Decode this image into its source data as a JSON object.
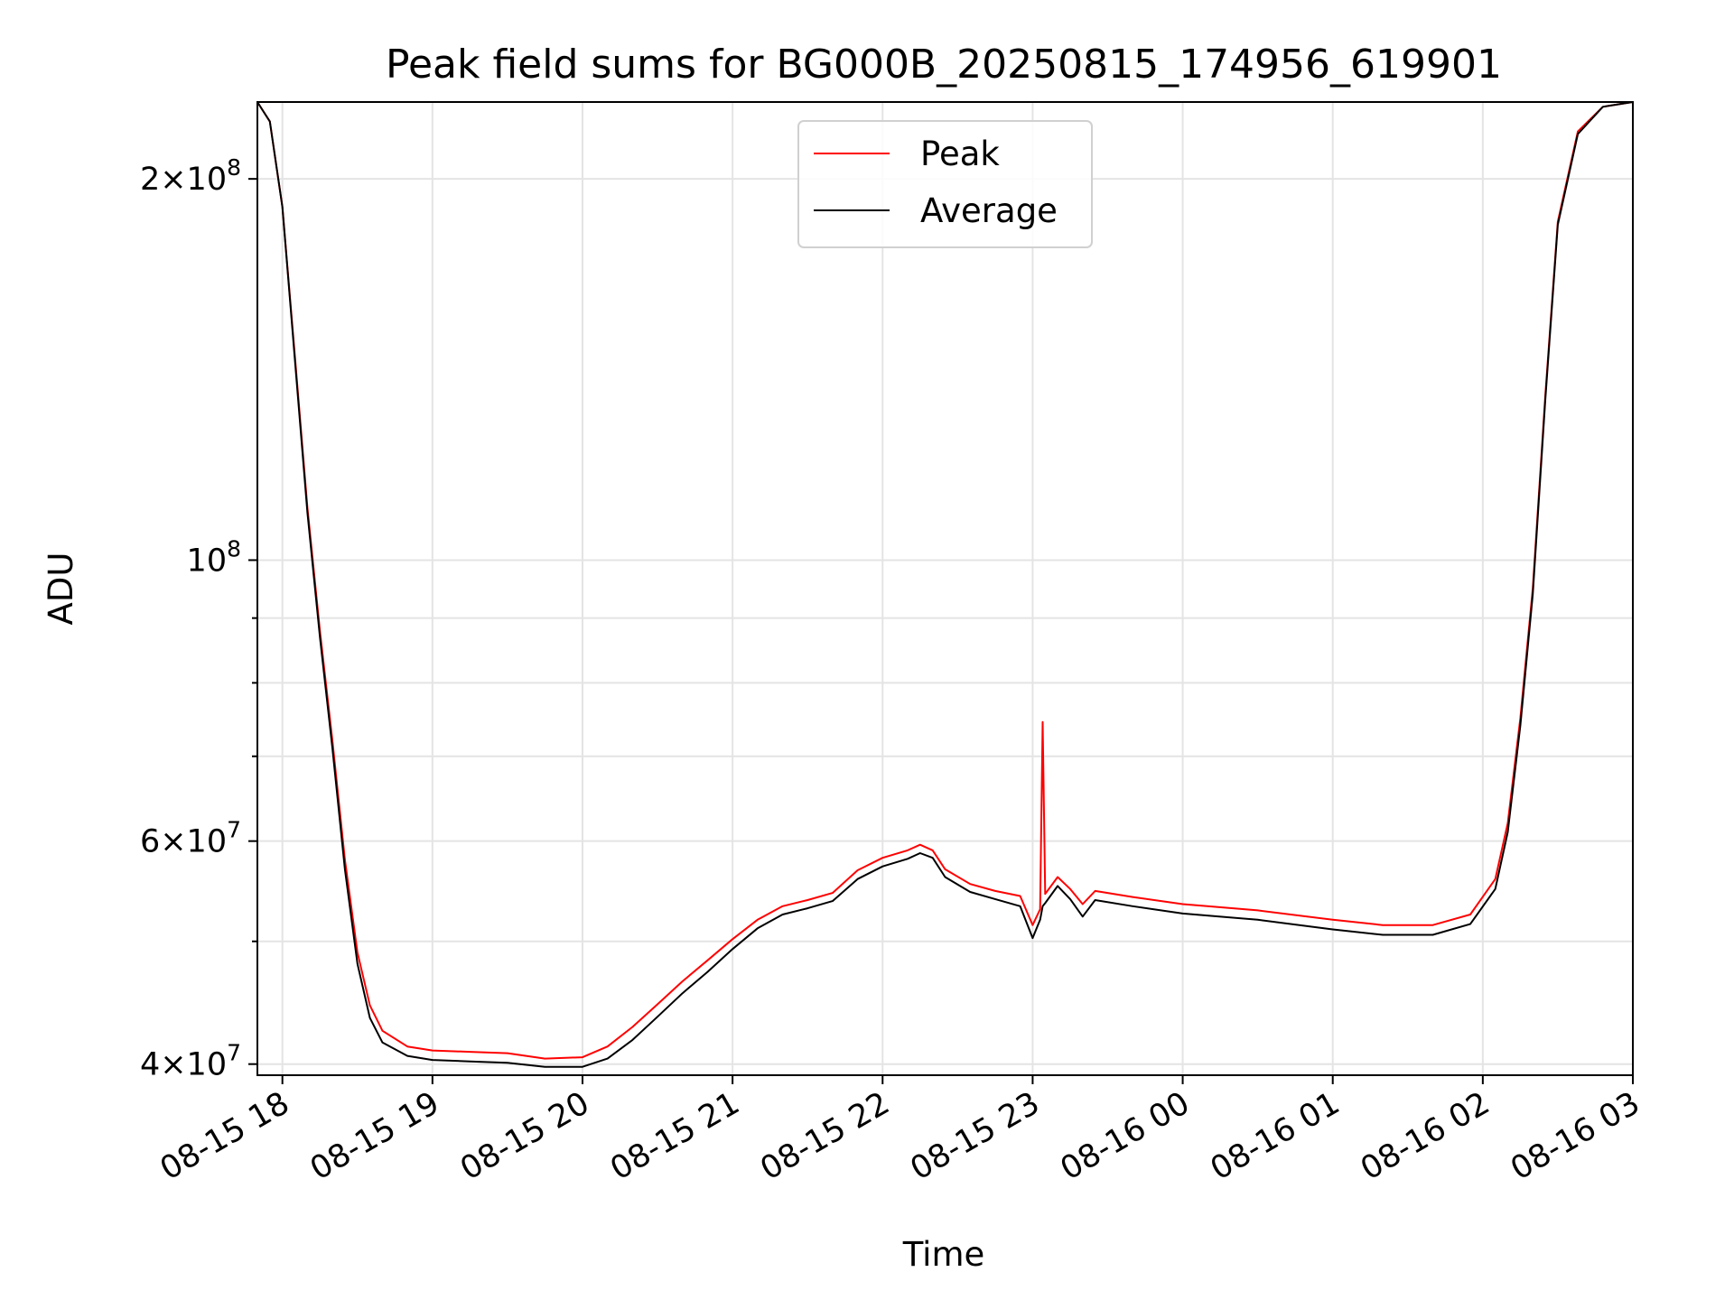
{
  "chart_data": {
    "type": "line",
    "title": "Peak field sums for BG000B_20250815_174956_619901",
    "xlabel": "Time",
    "ylabel": "ADU",
    "yscale": "log",
    "grid": true,
    "legend_position": "upper-center",
    "xlim": [
      "2025-08-15T17:50",
      "2025-08-16T03:00"
    ],
    "ylim": [
      39200000,
      230000000
    ],
    "x_ticks": [
      {
        "t": "2025-08-15T18:00",
        "label": "08-15 18"
      },
      {
        "t": "2025-08-15T19:00",
        "label": "08-15 19"
      },
      {
        "t": "2025-08-15T20:00",
        "label": "08-15 20"
      },
      {
        "t": "2025-08-15T21:00",
        "label": "08-15 21"
      },
      {
        "t": "2025-08-15T22:00",
        "label": "08-15 22"
      },
      {
        "t": "2025-08-15T23:00",
        "label": "08-15 23"
      },
      {
        "t": "2025-08-16T00:00",
        "label": "08-16 00"
      },
      {
        "t": "2025-08-16T01:00",
        "label": "08-16 01"
      },
      {
        "t": "2025-08-16T02:00",
        "label": "08-16 02"
      },
      {
        "t": "2025-08-16T03:00",
        "label": "08-16 03"
      }
    ],
    "y_ticks_major": [
      {
        "value": 40000000,
        "mantissa": "4",
        "exponent": "7"
      },
      {
        "value": 60000000,
        "mantissa": "6",
        "exponent": "7"
      },
      {
        "value": 100000000,
        "mantissa": "",
        "exponent": "8"
      },
      {
        "value": 200000000,
        "mantissa": "2",
        "exponent": "8"
      }
    ],
    "y_ticks_minor": [
      50000000,
      70000000,
      80000000,
      90000000
    ],
    "series": [
      {
        "name": "Peak",
        "color": "#ff0000",
        "points": [
          [
            "2025-08-15T17:50",
            230000000
          ],
          [
            "2025-08-15T17:55",
            222000000
          ],
          [
            "2025-08-15T18:00",
            190000000
          ],
          [
            "2025-08-15T18:05",
            145000000
          ],
          [
            "2025-08-15T18:10",
            110000000
          ],
          [
            "2025-08-15T18:15",
            88000000
          ],
          [
            "2025-08-15T18:20",
            72000000
          ],
          [
            "2025-08-15T18:25",
            58000000
          ],
          [
            "2025-08-15T18:30",
            49000000
          ],
          [
            "2025-08-15T18:35",
            44500000
          ],
          [
            "2025-08-15T18:40",
            42500000
          ],
          [
            "2025-08-15T18:50",
            41300000
          ],
          [
            "2025-08-15T19:00",
            41000000
          ],
          [
            "2025-08-15T19:15",
            40900000
          ],
          [
            "2025-08-15T19:30",
            40800000
          ],
          [
            "2025-08-15T19:45",
            40400000
          ],
          [
            "2025-08-15T20:00",
            40500000
          ],
          [
            "2025-08-15T20:10",
            41300000
          ],
          [
            "2025-08-15T20:20",
            42800000
          ],
          [
            "2025-08-15T20:30",
            44600000
          ],
          [
            "2025-08-15T20:40",
            46500000
          ],
          [
            "2025-08-15T20:50",
            48300000
          ],
          [
            "2025-08-15T21:00",
            50200000
          ],
          [
            "2025-08-15T21:10",
            52000000
          ],
          [
            "2025-08-15T21:20",
            53300000
          ],
          [
            "2025-08-15T21:30",
            53900000
          ],
          [
            "2025-08-15T21:40",
            54600000
          ],
          [
            "2025-08-15T21:50",
            56900000
          ],
          [
            "2025-08-15T22:00",
            58200000
          ],
          [
            "2025-08-15T22:10",
            59000000
          ],
          [
            "2025-08-15T22:15",
            59600000
          ],
          [
            "2025-08-15T22:20",
            59000000
          ],
          [
            "2025-08-15T22:25",
            57000000
          ],
          [
            "2025-08-15T22:35",
            55500000
          ],
          [
            "2025-08-15T22:45",
            54800000
          ],
          [
            "2025-08-15T22:55",
            54300000
          ],
          [
            "2025-08-15T23:00",
            51500000
          ],
          [
            "2025-08-15T23:03",
            53000000
          ],
          [
            "2025-08-15T23:04",
            74500000
          ],
          [
            "2025-08-15T23:05",
            54500000
          ],
          [
            "2025-08-15T23:10",
            56200000
          ],
          [
            "2025-08-15T23:15",
            55000000
          ],
          [
            "2025-08-15T23:20",
            53500000
          ],
          [
            "2025-08-15T23:25",
            54800000
          ],
          [
            "2025-08-15T23:40",
            54200000
          ],
          [
            "2025-08-16T00:00",
            53500000
          ],
          [
            "2025-08-16T00:30",
            52900000
          ],
          [
            "2025-08-16T01:00",
            52000000
          ],
          [
            "2025-08-16T01:20",
            51500000
          ],
          [
            "2025-08-16T01:40",
            51500000
          ],
          [
            "2025-08-16T01:55",
            52500000
          ],
          [
            "2025-08-16T02:05",
            56000000
          ],
          [
            "2025-08-16T02:10",
            62000000
          ],
          [
            "2025-08-16T02:15",
            75000000
          ],
          [
            "2025-08-16T02:20",
            95000000
          ],
          [
            "2025-08-16T02:25",
            135000000
          ],
          [
            "2025-08-16T02:30",
            185000000
          ],
          [
            "2025-08-16T02:38",
            218000000
          ],
          [
            "2025-08-16T02:48",
            228000000
          ],
          [
            "2025-08-16T03:00",
            230000000
          ]
        ]
      },
      {
        "name": "Average",
        "color": "#000000",
        "points": [
          [
            "2025-08-15T17:50",
            230000000
          ],
          [
            "2025-08-15T17:55",
            222000000
          ],
          [
            "2025-08-15T18:00",
            190000000
          ],
          [
            "2025-08-15T18:05",
            144000000
          ],
          [
            "2025-08-15T18:10",
            109000000
          ],
          [
            "2025-08-15T18:15",
            87000000
          ],
          [
            "2025-08-15T18:20",
            71000000
          ],
          [
            "2025-08-15T18:25",
            57000000
          ],
          [
            "2025-08-15T18:30",
            48000000
          ],
          [
            "2025-08-15T18:35",
            43500000
          ],
          [
            "2025-08-15T18:40",
            41600000
          ],
          [
            "2025-08-15T18:50",
            40600000
          ],
          [
            "2025-08-15T19:00",
            40300000
          ],
          [
            "2025-08-15T19:15",
            40200000
          ],
          [
            "2025-08-15T19:30",
            40100000
          ],
          [
            "2025-08-15T19:45",
            39800000
          ],
          [
            "2025-08-15T20:00",
            39800000
          ],
          [
            "2025-08-15T20:10",
            40400000
          ],
          [
            "2025-08-15T20:20",
            41800000
          ],
          [
            "2025-08-15T20:30",
            43600000
          ],
          [
            "2025-08-15T20:40",
            45500000
          ],
          [
            "2025-08-15T20:50",
            47300000
          ],
          [
            "2025-08-15T21:00",
            49300000
          ],
          [
            "2025-08-15T21:10",
            51200000
          ],
          [
            "2025-08-15T21:20",
            52500000
          ],
          [
            "2025-08-15T21:30",
            53100000
          ],
          [
            "2025-08-15T21:40",
            53800000
          ],
          [
            "2025-08-15T21:50",
            56000000
          ],
          [
            "2025-08-15T22:00",
            57300000
          ],
          [
            "2025-08-15T22:10",
            58100000
          ],
          [
            "2025-08-15T22:15",
            58700000
          ],
          [
            "2025-08-15T22:20",
            58200000
          ],
          [
            "2025-08-15T22:25",
            56200000
          ],
          [
            "2025-08-15T22:35",
            54700000
          ],
          [
            "2025-08-15T22:45",
            54000000
          ],
          [
            "2025-08-15T22:55",
            53300000
          ],
          [
            "2025-08-15T23:00",
            50300000
          ],
          [
            "2025-08-15T23:03",
            52000000
          ],
          [
            "2025-08-15T23:04",
            53300000
          ],
          [
            "2025-08-15T23:05",
            53600000
          ],
          [
            "2025-08-15T23:10",
            55300000
          ],
          [
            "2025-08-15T23:15",
            54000000
          ],
          [
            "2025-08-15T23:20",
            52300000
          ],
          [
            "2025-08-15T23:25",
            53900000
          ],
          [
            "2025-08-15T23:40",
            53300000
          ],
          [
            "2025-08-16T00:00",
            52600000
          ],
          [
            "2025-08-16T00:30",
            52000000
          ],
          [
            "2025-08-16T01:00",
            51100000
          ],
          [
            "2025-08-16T01:20",
            50600000
          ],
          [
            "2025-08-16T01:40",
            50600000
          ],
          [
            "2025-08-16T01:55",
            51600000
          ],
          [
            "2025-08-16T02:05",
            55000000
          ],
          [
            "2025-08-16T02:10",
            61000000
          ],
          [
            "2025-08-16T02:15",
            74000000
          ],
          [
            "2025-08-16T02:20",
            94000000
          ],
          [
            "2025-08-16T02:25",
            134000000
          ],
          [
            "2025-08-16T02:30",
            184000000
          ],
          [
            "2025-08-16T02:38",
            217000000
          ],
          [
            "2025-08-16T02:48",
            228000000
          ],
          [
            "2025-08-16T03:00",
            230000000
          ]
        ]
      }
    ]
  }
}
